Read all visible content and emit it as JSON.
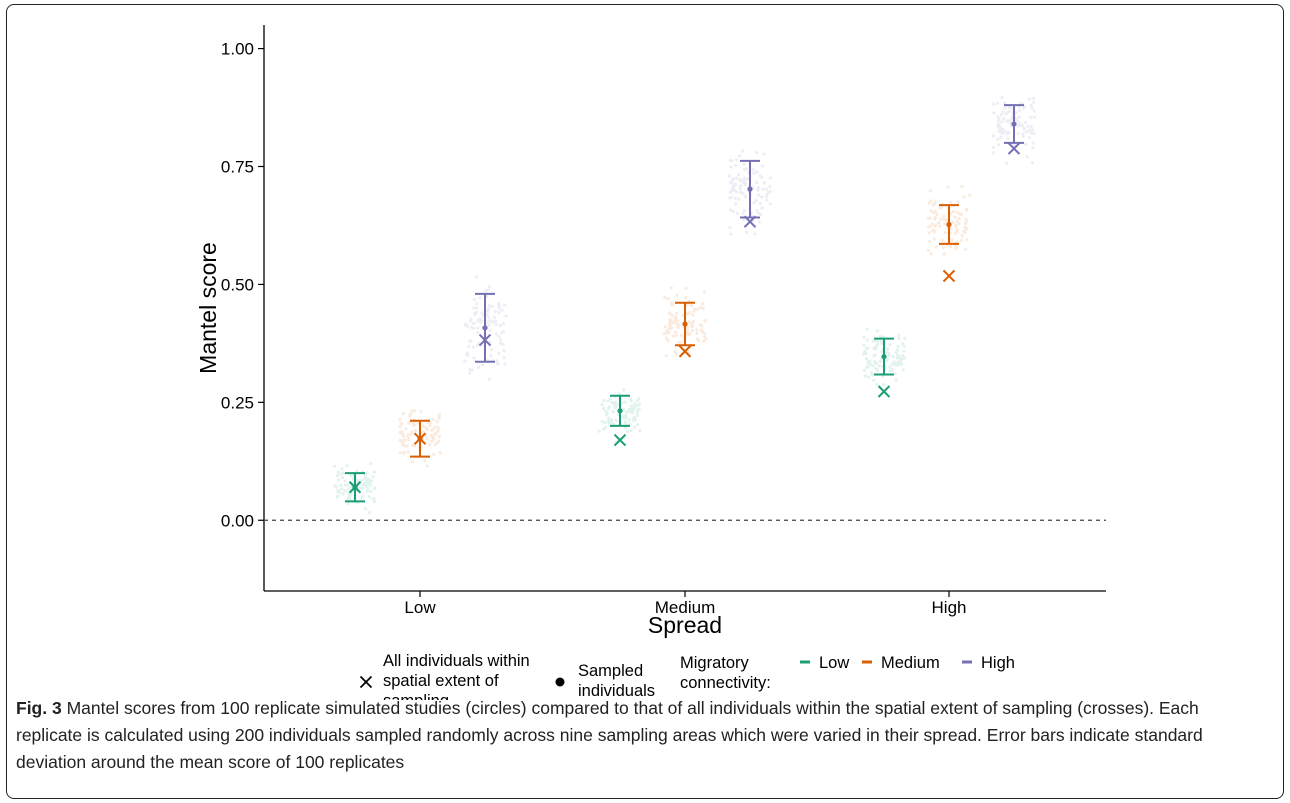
{
  "caption": {
    "label": "Fig. 3",
    "text": "Mantel scores from 100 replicate simulated studies (circles) compared to that of all individuals within the spatial extent of sampling (crosses). Each replicate is calculated using 200 individuals sampled randomly across nine sampling areas which were varied in their spread. Error bars indicate standard deviation around the mean score of 100 replicates"
  },
  "chart_data": {
    "type": "scatter",
    "xlabel": "Spread",
    "ylabel": "Mantel score",
    "categories": [
      "Low",
      "Medium",
      "High"
    ],
    "ylim": [
      -0.15,
      1.05
    ],
    "yticks": [
      "0.00",
      "0.25",
      "0.50",
      "0.75",
      "1.00"
    ],
    "reference_line": 0.0,
    "grid": false,
    "legend": {
      "position": "bottom",
      "shape_items": [
        {
          "label_lines": [
            "All individuals within",
            "spatial extent of",
            "sampling"
          ],
          "symbol": "cross"
        },
        {
          "label_lines": [
            "Sampled",
            "individuals"
          ],
          "symbol": "circle"
        }
      ],
      "color_title_lines": [
        "Migratory",
        "connectivity:"
      ],
      "color_items": [
        "Low",
        "Medium",
        "High"
      ]
    },
    "colors": {
      "Low": "#1b9e77",
      "Medium": "#d95f02",
      "High": "#7570b3"
    },
    "series": [
      {
        "name": "Low",
        "mean": [
          0.07,
          0.232,
          0.347
        ],
        "sd": [
          0.03,
          0.032,
          0.038
        ],
        "all_individuals": [
          0.07,
          0.17,
          0.273
        ]
      },
      {
        "name": "Medium",
        "mean": [
          0.173,
          0.416,
          0.627
        ],
        "sd": [
          0.038,
          0.045,
          0.041
        ],
        "all_individuals": [
          0.173,
          0.358,
          0.518
        ]
      },
      {
        "name": "High",
        "mean": [
          0.408,
          0.702,
          0.84
        ],
        "sd": [
          0.072,
          0.06,
          0.04
        ],
        "all_individuals": [
          0.382,
          0.633,
          0.788
        ]
      }
    ]
  }
}
